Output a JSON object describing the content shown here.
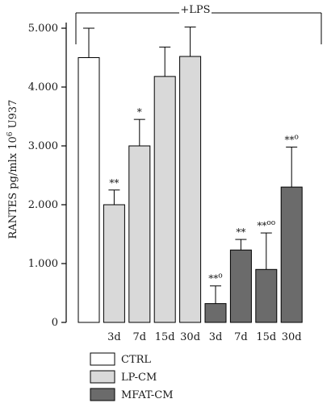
{
  "chart_data": {
    "type": "bar",
    "bracket_label": "+LPS",
    "ylabel": "RANTES pg/mlx 10^6 U937",
    "ylabel_parts": {
      "pre": "RANTES pg/mlx 10",
      "sup": "6",
      "post": " U937"
    },
    "ylim": [
      0,
      5500
    ],
    "yticks": [
      0,
      1000,
      2000,
      3000,
      4000,
      5000
    ],
    "ytick_labels": [
      "0",
      "1.000",
      "2.000",
      "3.000",
      "4.000",
      "5.000"
    ],
    "grid": false,
    "legend_position": "bottom-left",
    "series": [
      {
        "name": "CTRL",
        "color": "#ffffff"
      },
      {
        "name": "LP-CM",
        "color": "#d9d9d9"
      },
      {
        "name": "MFAT-CM",
        "color": "#6b6b6b"
      }
    ],
    "bars": [
      {
        "series": 0,
        "category": "",
        "value": 4500,
        "error": 500,
        "sig": ""
      },
      {
        "series": 1,
        "category": "3d",
        "value": 2000,
        "error": 250,
        "sig": "**"
      },
      {
        "series": 1,
        "category": "7d",
        "value": 3000,
        "error": 450,
        "sig": "*"
      },
      {
        "series": 1,
        "category": "15d",
        "value": 4180,
        "error": 500,
        "sig": ""
      },
      {
        "series": 1,
        "category": "30d",
        "value": 4520,
        "error": 500,
        "sig": ""
      },
      {
        "series": 2,
        "category": "3d",
        "value": 320,
        "error": 300,
        "sig": "**o"
      },
      {
        "series": 2,
        "category": "7d",
        "value": 1230,
        "error": 180,
        "sig": "**"
      },
      {
        "series": 2,
        "category": "15d",
        "value": 900,
        "error": 620,
        "sig": "**oo"
      },
      {
        "series": 2,
        "category": "30d",
        "value": 2300,
        "error": 680,
        "sig": "**o"
      }
    ]
  }
}
